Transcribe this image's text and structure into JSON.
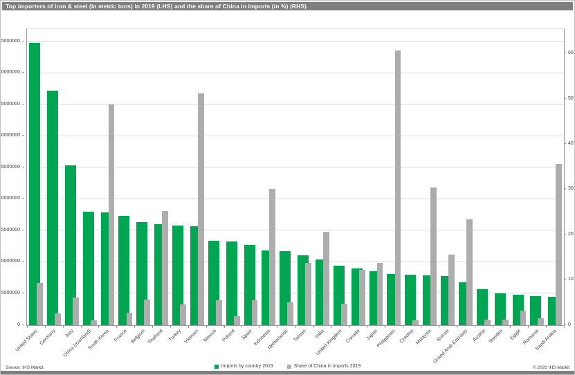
{
  "title": "Top importers of iron & steel (in metric tons) in 2019 (LHS) and the share of China in imports (in %) (RHS)",
  "source": "Source: IHS Markit",
  "copyright": "© 2020 IHS Markit",
  "legend": [
    {
      "label": "Imports by country 2019",
      "color": "#00a651"
    },
    {
      "label": "Share of China in imports 2019",
      "color": "#adadad"
    }
  ],
  "colors": {
    "imports_bar": "#00a651",
    "share_bar": "#adadad",
    "title_bar_bg": "#7f7f7f",
    "gridline": "#d9d9d9",
    "axis_line": "#9a9a9a",
    "text": "#404040"
  },
  "chart_data": {
    "type": "bar",
    "title": "Top importers of iron & steel (in metric tons) in 2019 (LHS) and the share of China in imports (in %) (RHS)",
    "grid": true,
    "legend_position": "bottom",
    "categories": [
      "United States",
      "Germany",
      "Italy",
      "China (mainland)",
      "South Korea",
      "France",
      "Belgium",
      "Thailand",
      "Turkey",
      "Vietnam",
      "Mexico",
      "Poland",
      "Spain",
      "Indonesia",
      "Netherlands",
      "Taiwan",
      "India",
      "United Kingdom",
      "Canada",
      "Japan",
      "Philippines",
      "Czechia",
      "Malaysia",
      "Russia",
      "United Arab Emirates",
      "Austria",
      "Sweden",
      "Egypt",
      "Romania",
      "Saudi Arabia"
    ],
    "series": [
      {
        "name": "Imports by country 2019",
        "axis": "left",
        "color": "#00a651",
        "values": [
          44800000,
          37200000,
          25400000,
          18000000,
          17900000,
          17400000,
          16400000,
          16000000,
          15800000,
          15700000,
          13400000,
          13300000,
          12700000,
          11900000,
          11700000,
          11100000,
          10400000,
          9500000,
          9000000,
          8600000,
          8100000,
          8000000,
          7900000,
          7800000,
          6800000,
          5700000,
          5000000,
          4800000,
          4600000,
          4500000
        ]
      },
      {
        "name": "Share of China in imports 2019",
        "axis": "right",
        "color": "#adadad",
        "values": [
          9.4,
          2.6,
          6.2,
          1.0,
          48.8,
          2.8,
          5.7,
          25.2,
          4.6,
          51.3,
          5.5,
          2.0,
          5.5,
          30.1,
          5.0,
          13.8,
          20.7,
          4.8,
          12.2,
          13.8,
          60.8,
          1.0,
          30.5,
          15.6,
          23.4,
          1.3,
          1.2,
          3.2,
          1.5,
          35.7
        ]
      }
    ],
    "left_axis": {
      "label_side": "left",
      "ticks": [
        0,
        5000000,
        10000000,
        15000000,
        20000000,
        25000000,
        30000000,
        35000000,
        40000000,
        45000000
      ],
      "max": 47000000
    },
    "right_axis": {
      "label_side": "right",
      "ticks": [
        0,
        10,
        20,
        30,
        40,
        50,
        60
      ],
      "max": 65.5
    }
  }
}
